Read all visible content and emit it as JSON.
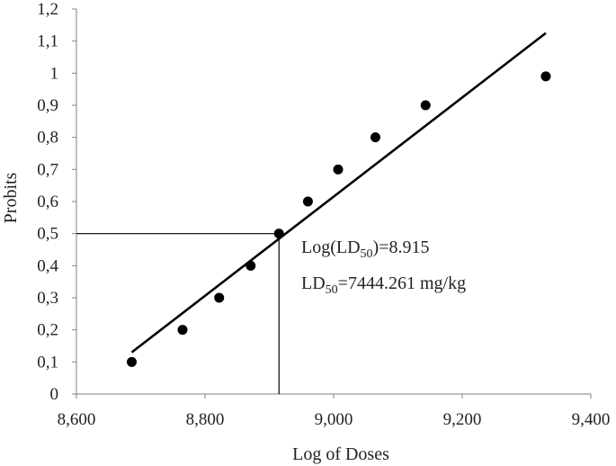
{
  "chart_data": {
    "type": "scatter",
    "xlabel": "Log of Doses",
    "ylabel": "Probits",
    "xlim": [
      8.6,
      9.4
    ],
    "ylim": [
      0,
      1.2
    ],
    "x_ticks": [
      8.6,
      8.8,
      9.0,
      9.2,
      9.4
    ],
    "x_tick_labels": [
      "8,600",
      "8,800",
      "9,000",
      "9,200",
      "9,400"
    ],
    "y_ticks": [
      0,
      0.1,
      0.2,
      0.3,
      0.4,
      0.5,
      0.6,
      0.7,
      0.8,
      0.9,
      1.0,
      1.1,
      1.2
    ],
    "y_tick_labels": [
      "0",
      "0,1",
      "0,2",
      "0,3",
      "0,4",
      "0,5",
      "0,6",
      "0,7",
      "0,8",
      "0,9",
      "1",
      "1,1",
      "1,2"
    ],
    "points": [
      {
        "x": 8.686,
        "y": 0.1
      },
      {
        "x": 8.765,
        "y": 0.2
      },
      {
        "x": 8.822,
        "y": 0.3
      },
      {
        "x": 8.871,
        "y": 0.4
      },
      {
        "x": 8.915,
        "y": 0.5
      },
      {
        "x": 8.96,
        "y": 0.6
      },
      {
        "x": 9.007,
        "y": 0.7
      },
      {
        "x": 9.065,
        "y": 0.8
      },
      {
        "x": 9.143,
        "y": 0.9
      },
      {
        "x": 9.33,
        "y": 0.99
      }
    ],
    "trendline": {
      "x": [
        8.686,
        9.33
      ],
      "y": [
        0.13,
        1.125
      ]
    },
    "reference_x": 8.915,
    "reference_y": 0.5,
    "grid": false,
    "legend": "none",
    "annotations": {
      "log_ld50": {
        "prefix": "Log(LD",
        "subscript": "50",
        "suffix": ")=8.915"
      },
      "ld50": {
        "prefix": "LD",
        "subscript": "50",
        "suffix": "=7444.261 mg/kg"
      }
    },
    "colors": {
      "points": "#000000",
      "line": "#000000",
      "axis": "#808080"
    }
  }
}
